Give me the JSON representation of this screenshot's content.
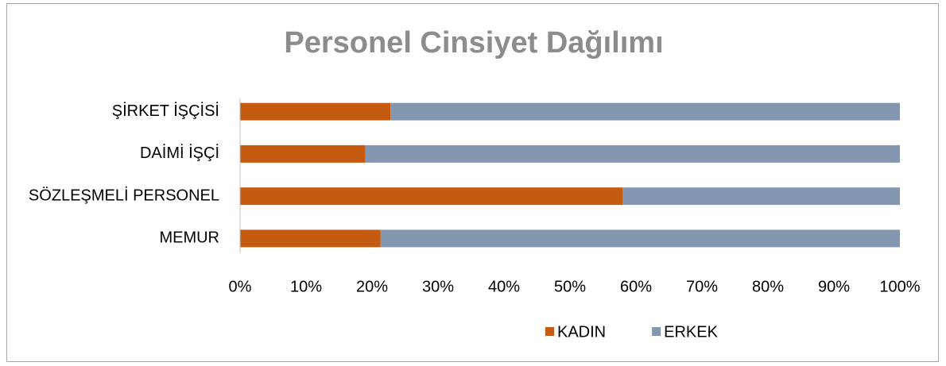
{
  "chart_data": {
    "type": "bar",
    "orientation": "horizontal",
    "stacked": true,
    "title": "Personel Cinsiyet Dağılımı",
    "categories": [
      "ŞİRKET İŞÇİSİ",
      "DAİMİ İŞÇİ",
      "SÖZLEŞMELİ PERSONEL",
      "MEMUR"
    ],
    "series": [
      {
        "name": "KADIN",
        "color": "#c55a11",
        "values": [
          22.8,
          19,
          58,
          21.3
        ]
      },
      {
        "name": "ERKEK",
        "color": "#8497b0",
        "values": [
          77.2,
          81,
          42,
          78.7
        ]
      }
    ],
    "xlim": [
      0,
      100
    ],
    "xticks": [
      {
        "value": 0,
        "label": "0%"
      },
      {
        "value": 10,
        "label": "10%"
      },
      {
        "value": 20,
        "label": "20%"
      },
      {
        "value": 30,
        "label": "30%"
      },
      {
        "value": 40,
        "label": "40%"
      },
      {
        "value": 50,
        "label": "50%"
      },
      {
        "value": 60,
        "label": "60%"
      },
      {
        "value": 70,
        "label": "70%"
      },
      {
        "value": 80,
        "label": "80%"
      },
      {
        "value": 90,
        "label": "90%"
      },
      {
        "value": 100,
        "label": "100%"
      }
    ],
    "grid": false,
    "legend": "bottom"
  }
}
